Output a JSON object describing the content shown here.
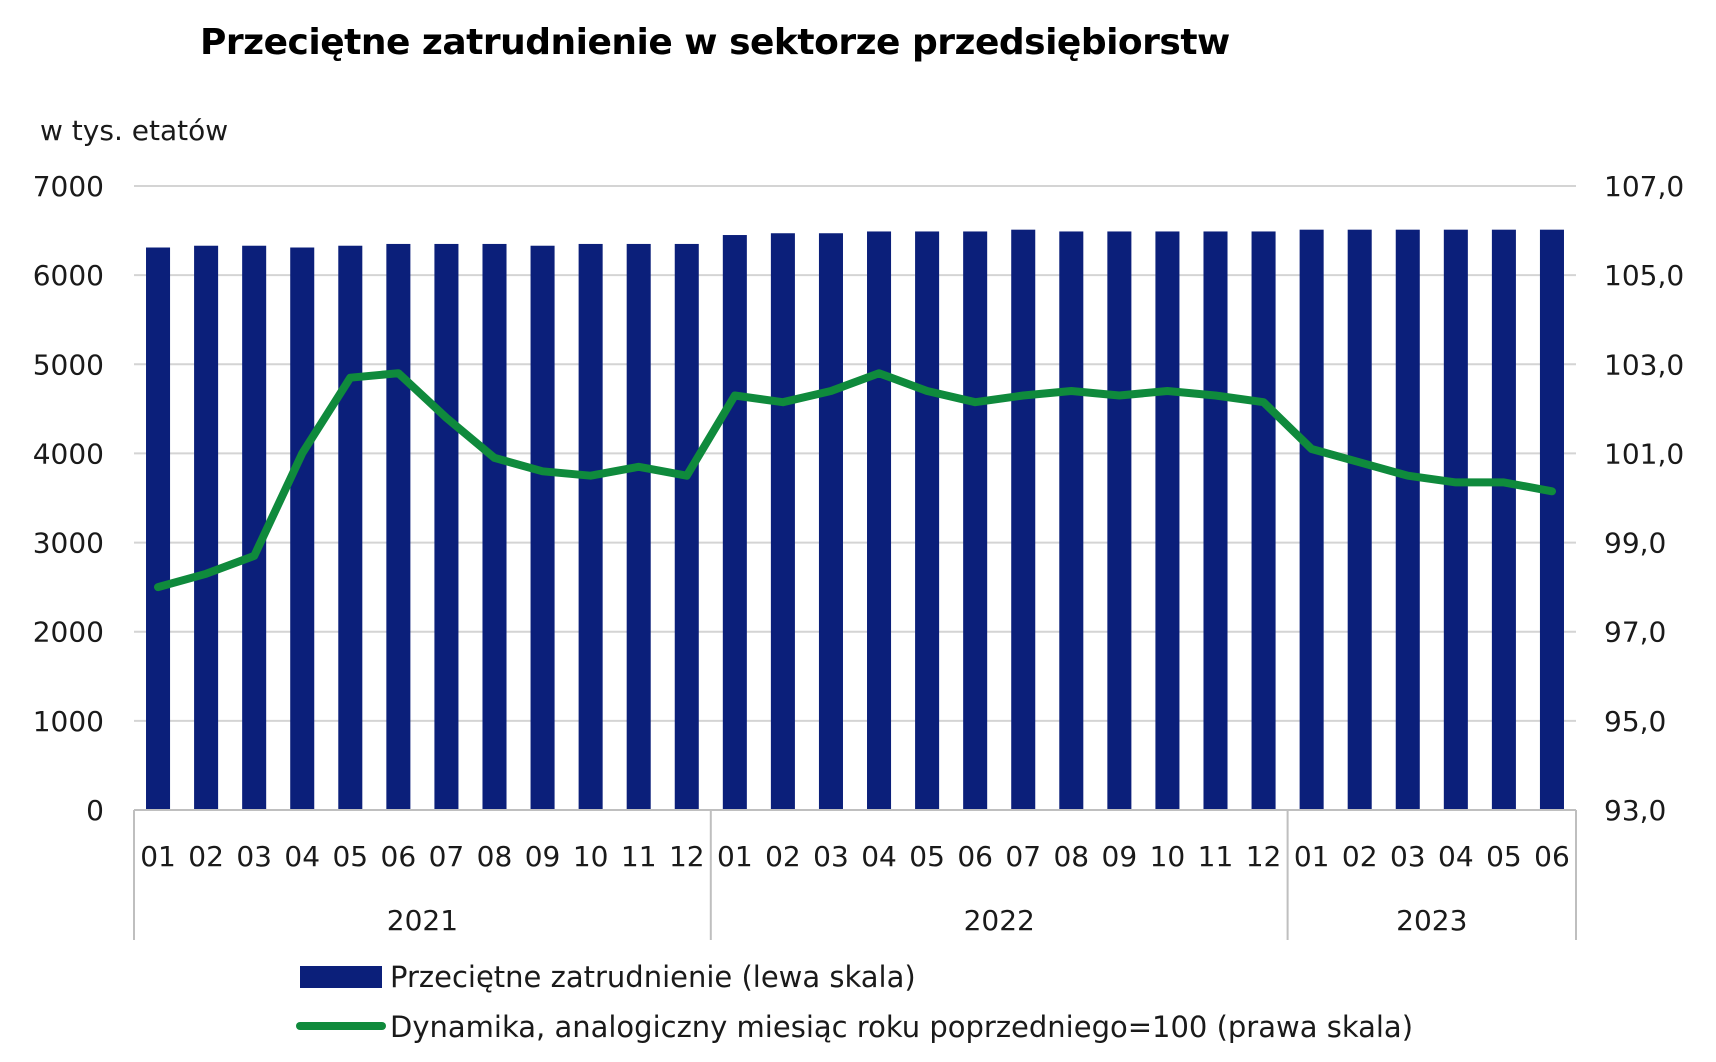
{
  "chart_data": {
    "type": "bar",
    "title": "Przeciętne zatrudnienie w sektorze przedsiębiorstw",
    "left_axis_unit": "w tys. etatów",
    "months": [
      "01",
      "02",
      "03",
      "04",
      "05",
      "06",
      "07",
      "08",
      "09",
      "10",
      "11",
      "12",
      "01",
      "02",
      "03",
      "04",
      "05",
      "06",
      "07",
      "08",
      "09",
      "10",
      "11",
      "12",
      "01",
      "02",
      "03",
      "04",
      "05",
      "06"
    ],
    "years": [
      {
        "label": "2021",
        "count": 12
      },
      {
        "label": "2022",
        "count": 12
      },
      {
        "label": "2023",
        "count": 6
      }
    ],
    "left_axis": {
      "min": 0,
      "max": 7000,
      "ticks": [
        "0",
        "1000",
        "2000",
        "3000",
        "4000",
        "5000",
        "6000",
        "7000"
      ]
    },
    "right_axis": {
      "min": 93.0,
      "max": 107.0,
      "ticks": [
        "93,0",
        "95,0",
        "97,0",
        "99,0",
        "101,0",
        "103,0",
        "105,0",
        "107,0"
      ]
    },
    "grid": "horizontal",
    "legend_position": "bottom",
    "series": [
      {
        "name": "Przeciętne zatrudnienie (lewa skala)",
        "type": "bar",
        "axis": "left",
        "color": "#0b1f7a",
        "values": [
          6310,
          6330,
          6330,
          6310,
          6330,
          6350,
          6350,
          6350,
          6330,
          6350,
          6350,
          6350,
          6450,
          6470,
          6470,
          6490,
          6490,
          6490,
          6510,
          6490,
          6490,
          6490,
          6490,
          6490,
          6510,
          6510,
          6510,
          6510,
          6510,
          6510
        ]
      },
      {
        "name": "Dynamika, analogiczny miesiąc roku poprzedniego=100 (prawa skala)",
        "type": "line",
        "axis": "right",
        "color": "#0f8a3c",
        "values": [
          98.0,
          98.3,
          98.7,
          101.0,
          102.7,
          102.8,
          101.8,
          100.9,
          100.6,
          100.5,
          100.7,
          100.5,
          102.3,
          102.15,
          102.4,
          102.8,
          102.4,
          102.15,
          102.3,
          102.4,
          102.3,
          102.4,
          102.3,
          102.15,
          101.1,
          100.8,
          100.5,
          100.35,
          100.35,
          100.15
        ]
      }
    ]
  }
}
